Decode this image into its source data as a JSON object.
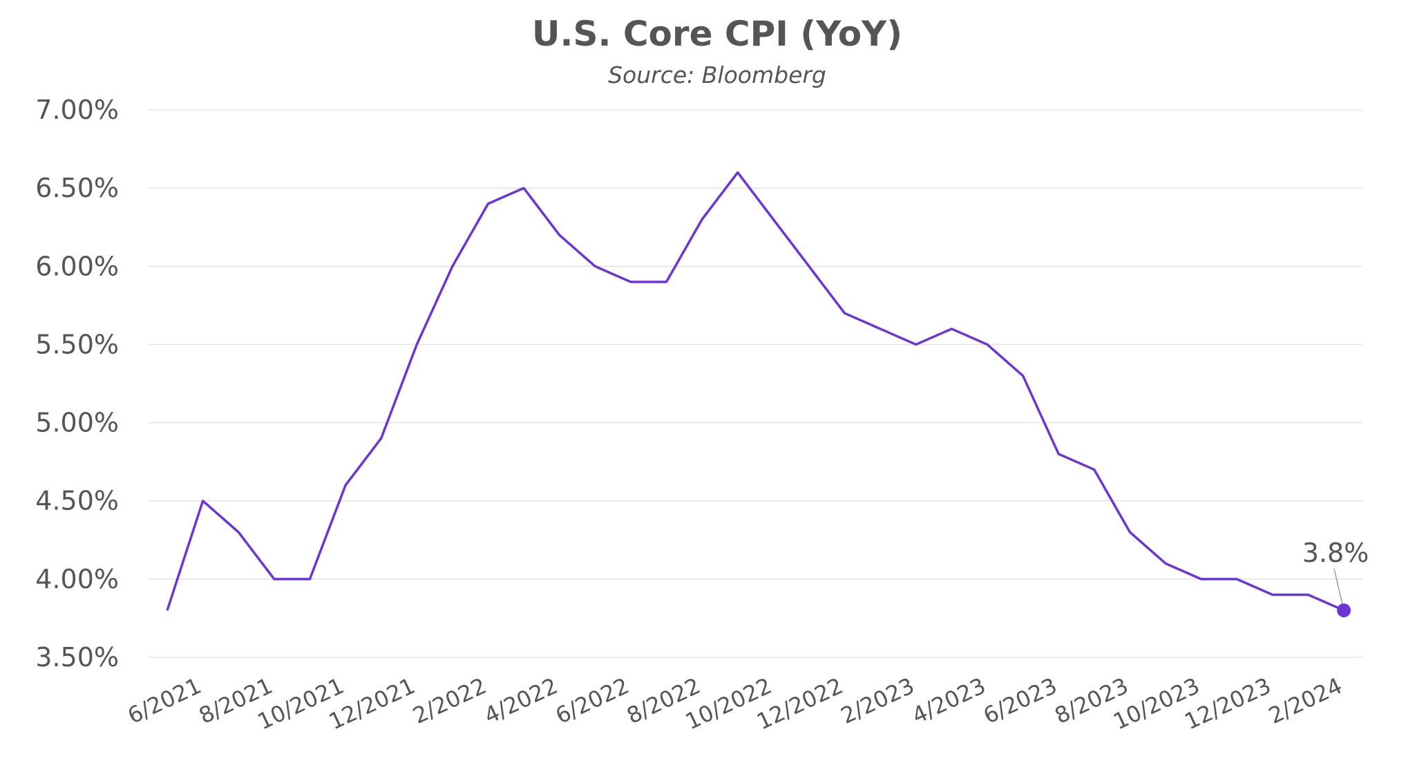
{
  "chart_data": {
    "type": "line",
    "title": "U.S. Core CPI (YoY)",
    "subtitle": "Source: Bloomberg",
    "categories": [
      null,
      "6/2021",
      null,
      "8/2021",
      null,
      "10/2021",
      null,
      "12/2021",
      null,
      "2/2022",
      null,
      "4/2022",
      null,
      "6/2022",
      null,
      "8/2022",
      null,
      "10/2022",
      null,
      "12/2022",
      null,
      "2/2023",
      null,
      "4/2023",
      null,
      "6/2023",
      null,
      "8/2023",
      null,
      "10/2023",
      null,
      "12/2023",
      null,
      "2/2024"
    ],
    "series": [
      {
        "name": "U.S. Core CPI (YoY)",
        "color": "#6b35d6",
        "values": [
          3.8,
          4.5,
          4.3,
          4.0,
          4.0,
          4.6,
          4.9,
          5.5,
          6.0,
          6.4,
          6.5,
          6.2,
          6.0,
          5.9,
          5.9,
          6.3,
          6.6,
          6.3,
          6.0,
          5.7,
          5.6,
          5.5,
          5.6,
          5.5,
          5.3,
          4.8,
          4.7,
          4.3,
          4.1,
          4.0,
          4.0,
          3.9,
          3.9,
          3.8
        ],
        "value_labels": [
          null,
          null,
          null,
          null,
          null,
          null,
          null,
          null,
          null,
          null,
          null,
          null,
          null,
          null,
          null,
          null,
          null,
          null,
          null,
          null,
          null,
          null,
          null,
          null,
          null,
          null,
          null,
          null,
          null,
          null,
          null,
          null,
          null,
          "3.8%"
        ]
      }
    ],
    "ylim": [
      3.5,
      7.0
    ],
    "yticks": [
      {
        "value": 3.5,
        "label": "3.50%"
      },
      {
        "value": 4.0,
        "label": "4.00%"
      },
      {
        "value": 4.5,
        "label": "4.50%"
      },
      {
        "value": 5.0,
        "label": "5.00%"
      },
      {
        "value": 5.5,
        "label": "5.50%"
      },
      {
        "value": 6.0,
        "label": "6.00%"
      },
      {
        "value": 6.5,
        "label": "6.50%"
      },
      {
        "value": 7.0,
        "label": "7.00%"
      }
    ],
    "grid": true
  }
}
